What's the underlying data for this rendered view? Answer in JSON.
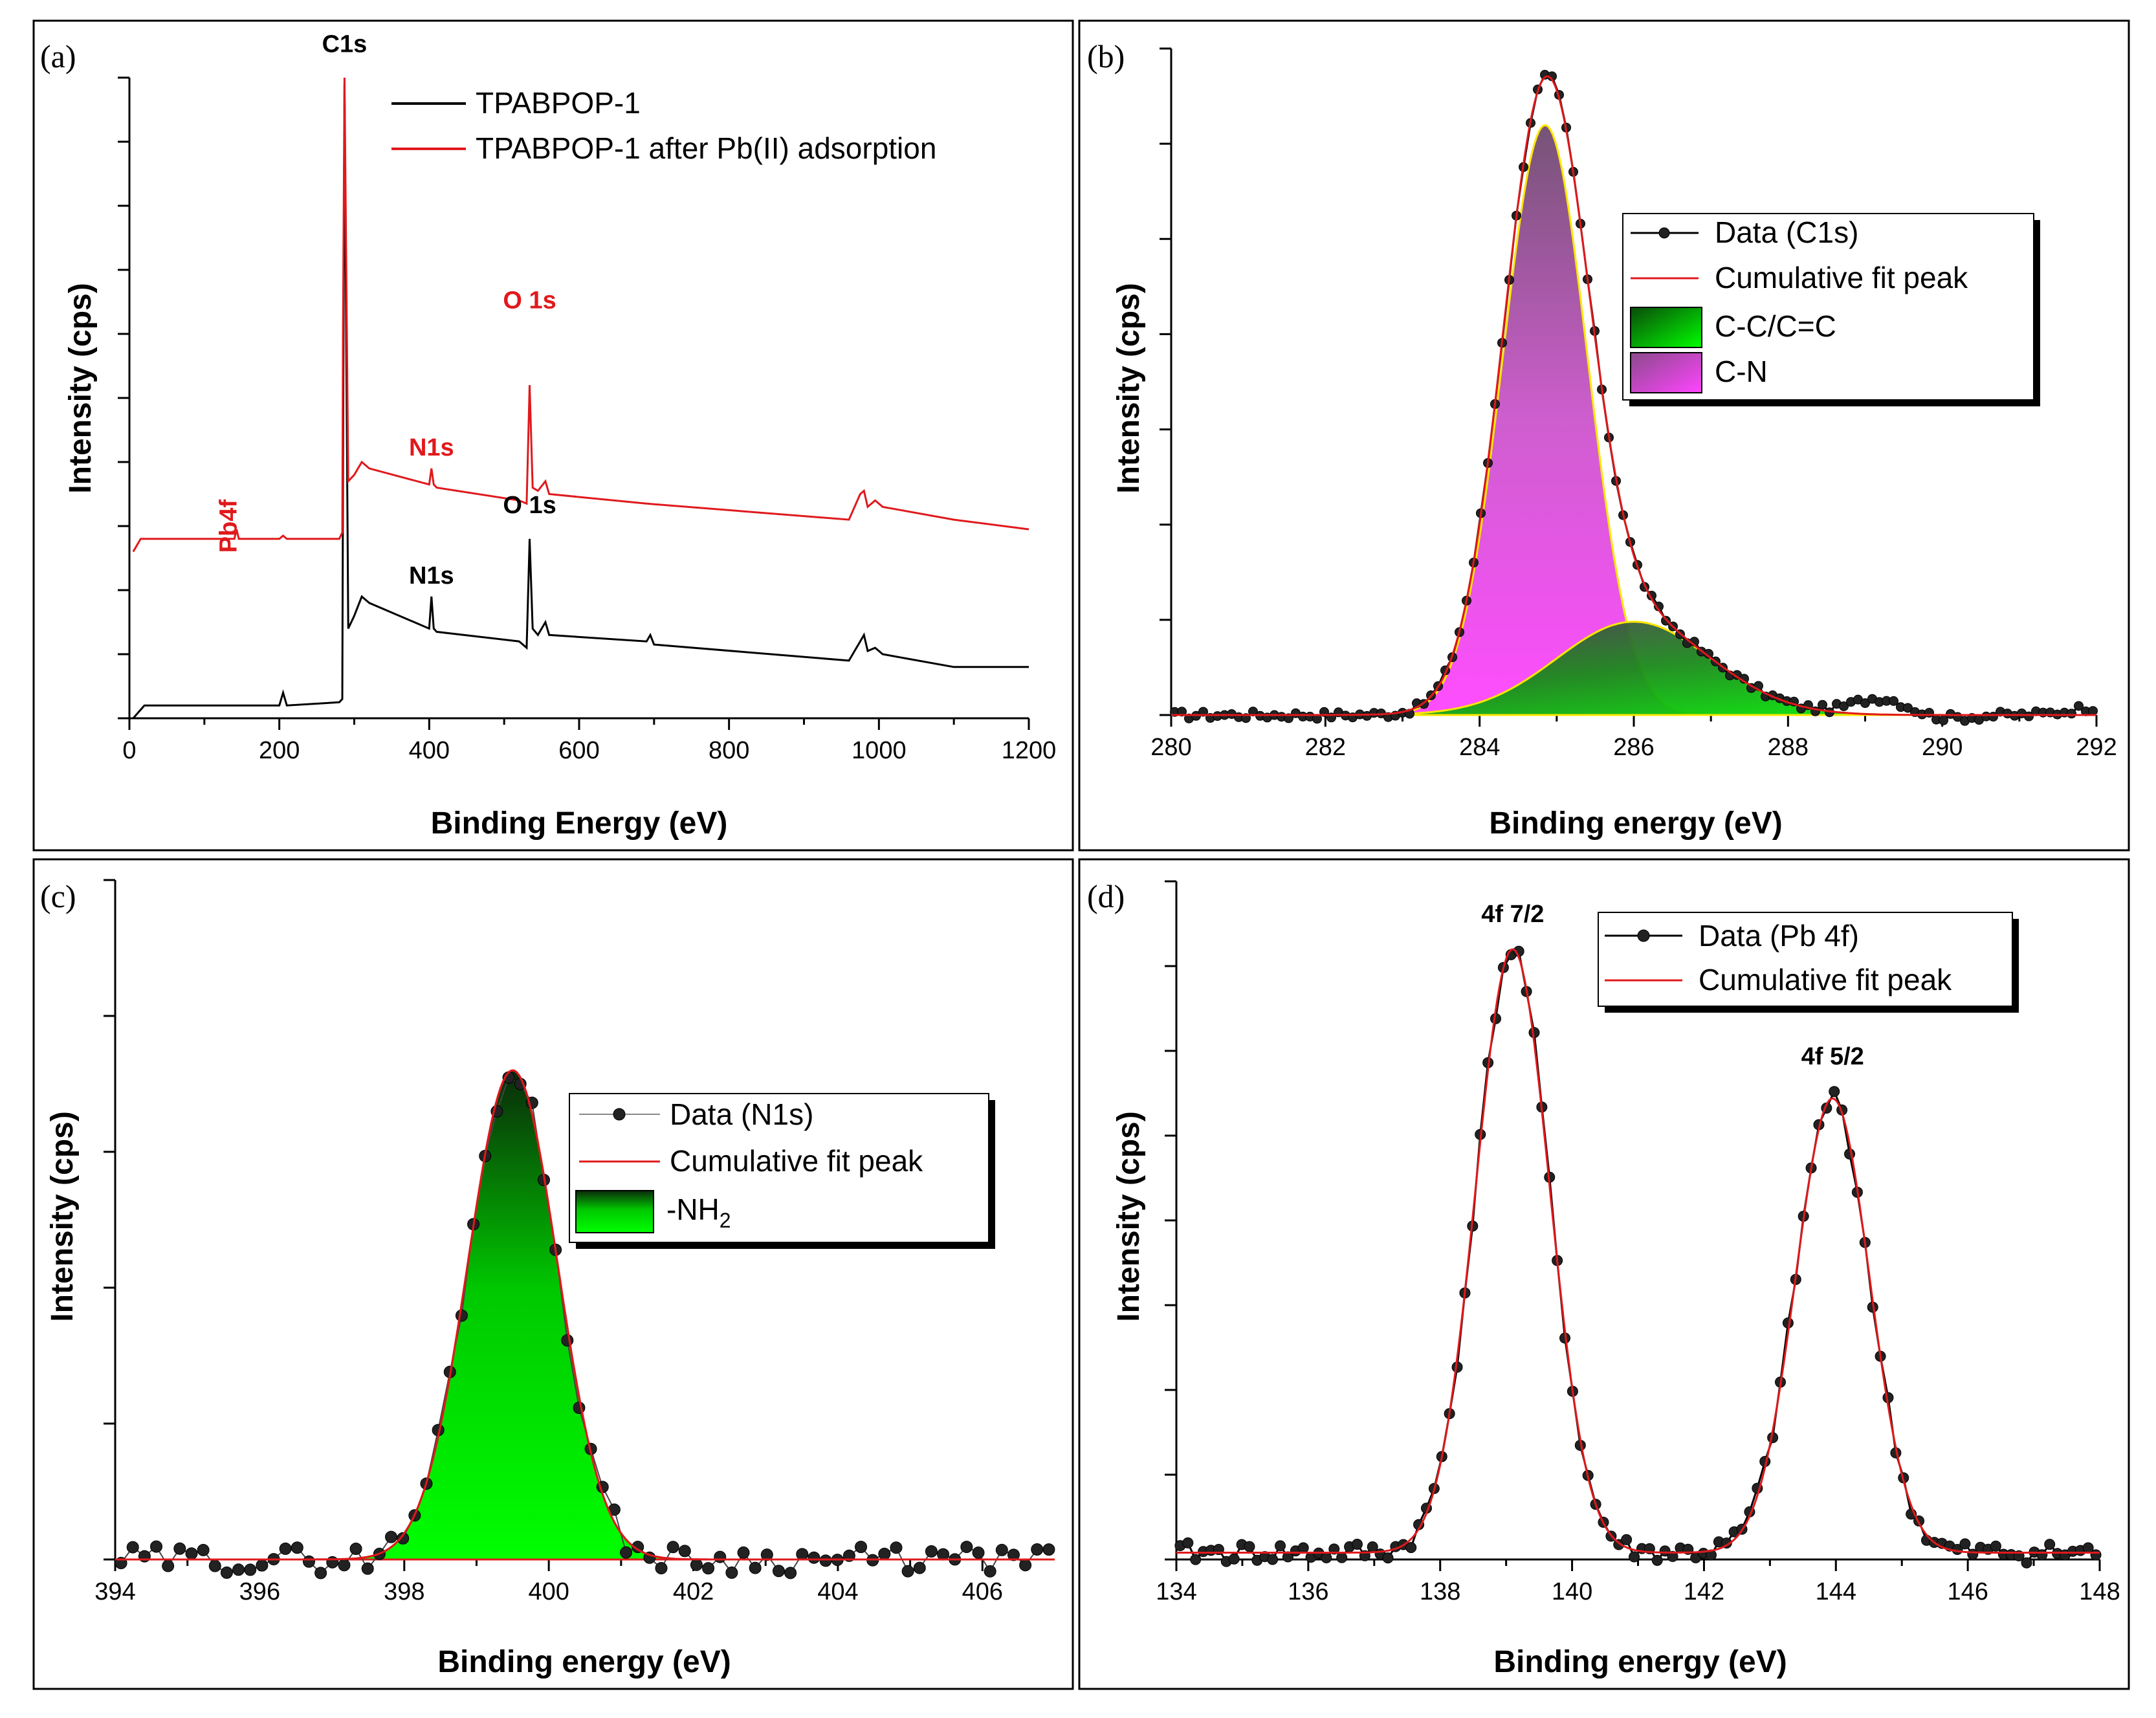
{
  "colors": {
    "black": "#000000",
    "red": "#e0191c",
    "green_fill": "#00dd00",
    "green_dark": "#0a3a0a",
    "magenta": "#ff44ff",
    "purple": "#6e3a70",
    "yellow": "#ffe600"
  },
  "chart_data": [
    {
      "id": "a",
      "panel_label": "(a)",
      "type": "line",
      "title": "",
      "xlabel": "Binding Energy (eV)",
      "ylabel": "Intensity (cps)",
      "xlim": [
        0,
        1200
      ],
      "xticks": [
        0,
        200,
        400,
        600,
        800,
        1000,
        1200
      ],
      "ylim": [
        0,
        100
      ],
      "legend": [
        "TPABPOP-1",
        "TPABPOP-1 after Pb(II) adsorption"
      ],
      "legend_position": "top-right",
      "series": [
        {
          "name": "TPABPOP-1",
          "color": "#000000",
          "x": [
            5,
            20,
            200,
            205,
            210,
            280,
            284,
            285,
            287,
            292,
            300,
            310,
            320,
            400,
            403,
            406,
            410,
            520,
            530,
            534,
            538,
            545,
            555,
            560,
            690,
            695,
            700,
            960,
            975,
            980,
            985,
            995,
            1005,
            1100,
            1200
          ],
          "y": [
            0,
            2,
            2,
            4,
            2,
            2.5,
            3,
            38,
            99,
            14,
            16,
            19,
            18,
            14,
            19,
            14,
            13.5,
            12,
            11,
            28,
            14,
            13,
            15,
            13,
            12,
            13,
            11.5,
            9,
            12,
            13,
            10.5,
            11,
            10,
            8,
            8
          ]
        },
        {
          "name": "TPABPOP-1 after Pb(II) adsorption",
          "color": "#e0191c",
          "x": [
            5,
            15,
            140,
            143,
            146,
            200,
            205,
            210,
            280,
            284,
            285,
            287,
            292,
            300,
            310,
            320,
            400,
            403,
            406,
            410,
            520,
            530,
            534,
            538,
            545,
            555,
            560,
            690,
            960,
            975,
            980,
            985,
            995,
            1005,
            1100,
            1200
          ],
          "y": [
            26,
            28,
            28,
            29.5,
            28,
            28,
            28.5,
            28,
            28,
            29,
            60,
            100,
            37,
            38,
            40,
            39,
            36.5,
            39,
            36.5,
            36,
            34,
            33.5,
            52,
            36,
            35.5,
            37,
            35,
            33.5,
            31,
            35,
            35.5,
            33,
            34,
            33,
            31,
            29.5
          ]
        }
      ],
      "annotations": [
        {
          "text": "C1s",
          "color": "#000000",
          "x": 287,
          "y": 104
        },
        {
          "text": "O 1s",
          "color": "#e0191c",
          "x": 534,
          "y": 64
        },
        {
          "text": "N1s",
          "color": "#e0191c",
          "x": 403,
          "y": 41
        },
        {
          "text": "Pb4f",
          "color": "#e0191c",
          "x": 143,
          "y": 30,
          "rotate": true
        },
        {
          "text": "O 1s",
          "color": "#000000",
          "x": 534,
          "y": 32
        },
        {
          "text": "N1s",
          "color": "#000000",
          "x": 403,
          "y": 21
        }
      ]
    },
    {
      "id": "b",
      "panel_label": "(b)",
      "type": "line",
      "title": "",
      "xlabel": "Binding energy (eV)",
      "ylabel": "Intensity (cps)",
      "xlim": [
        280,
        292
      ],
      "xticks": [
        280,
        282,
        284,
        286,
        288,
        290,
        292
      ],
      "ylim": [
        0,
        100
      ],
      "legend": [
        "Data (C1s)",
        "Cumulative fit peak",
        "C-C/C=C",
        "C-N"
      ],
      "legend_position": "top-right",
      "components": [
        {
          "name": "C-N",
          "center": 284.85,
          "height": 88.5,
          "sigma": 0.55,
          "fill": "#ff44ff"
        },
        {
          "name": "C-C/C=C",
          "center": 286.0,
          "height": 14,
          "sigma": 1.0,
          "fill": "#00dd00"
        }
      ],
      "baseline": 0,
      "data_label": "Data (C1s)",
      "cumulative_label": "Cumulative fit peak",
      "data_extra": [
        {
          "x": 289.2,
          "y": 2.5
        },
        {
          "x": 290.0,
          "y": -0.5
        },
        {
          "x": 292.0,
          "y": 1.2
        }
      ]
    },
    {
      "id": "c",
      "panel_label": "(c)",
      "type": "line",
      "title": "",
      "xlabel": "Binding energy (eV)",
      "ylabel": "Intensity (cps)",
      "xlim": [
        394,
        407
      ],
      "xticks": [
        394,
        396,
        398,
        400,
        402,
        404,
        406
      ],
      "ylim": [
        0,
        100
      ],
      "legend": [
        "Data (N1s)",
        "Cumulative fit peak",
        "-NH2"
      ],
      "legend_position": "top-right",
      "components": [
        {
          "name": "-NH2",
          "center": 399.5,
          "height": 72,
          "sigma": 0.62,
          "fill": "#00dd00"
        }
      ],
      "baseline": 0,
      "data_label": "Data (N1s)",
      "cumulative_label": "Cumulative fit peak",
      "fill_label_main": "-NH",
      "fill_label_sub": "2"
    },
    {
      "id": "d",
      "panel_label": "(d)",
      "type": "line",
      "title": "",
      "xlabel": "Binding energy (eV)",
      "ylabel": "Intensity (cps)",
      "xlim": [
        134,
        148
      ],
      "xticks": [
        134,
        136,
        138,
        140,
        142,
        144,
        146,
        148
      ],
      "ylim": [
        0,
        100
      ],
      "legend": [
        "Data (Pb 4f)",
        "Cumulative fit peak"
      ],
      "legend_position": "top-right",
      "components": [
        {
          "name": "4f 7/2",
          "center": 139.1,
          "height": 89,
          "sigma": 0.56
        },
        {
          "name": "4f 5/2",
          "center": 143.95,
          "height": 67,
          "sigma": 0.56
        }
      ],
      "baseline": 1,
      "data_label": "Data (Pb 4f)",
      "cumulative_label": "Cumulative fit peak",
      "annotations": [
        {
          "text": "4f 7/2",
          "color": "#000000",
          "x": 139.1,
          "y": 94
        },
        {
          "text": "4f 5/2",
          "color": "#000000",
          "x": 143.95,
          "y": 73
        }
      ]
    }
  ]
}
